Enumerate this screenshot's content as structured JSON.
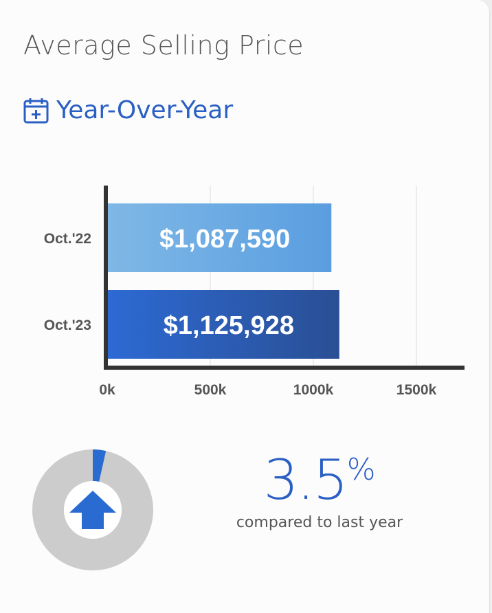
{
  "header": {
    "title": "Average Selling Price",
    "subtitle": "Year-Over-Year",
    "subtitle_icon": "calendar-plus-icon"
  },
  "chart_data": {
    "type": "bar",
    "orientation": "horizontal",
    "categories": [
      "Oct.'22",
      "Oct.'23"
    ],
    "values": [
      1087590,
      1125928
    ],
    "value_labels": [
      "$1,087,590",
      "$1,125,928"
    ],
    "xlim": [
      0,
      1600000
    ],
    "ticks": [
      0,
      500000,
      1000000,
      1500000
    ],
    "tick_labels": [
      "0k",
      "500k",
      "1000k",
      "1500k"
    ],
    "grid": true,
    "colors": [
      [
        "#7fb8e6",
        "#5a9ee0"
      ],
      [
        "#2d6ad4",
        "#2a4f94"
      ]
    ]
  },
  "change": {
    "percent_value": "3.5",
    "percent_sign": "%",
    "caption": "compared to last year",
    "direction_icon": "arrow-up-icon",
    "donut_fraction": 0.035,
    "accent": "#2a6bd2",
    "track": "#cccccc"
  }
}
